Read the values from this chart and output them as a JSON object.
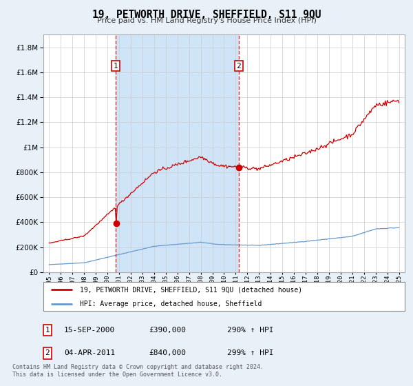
{
  "title": "19, PETWORTH DRIVE, SHEFFIELD, S11 9QU",
  "subtitle": "Price paid vs. HM Land Registry's House Price Index (HPI)",
  "legend_line1": "19, PETWORTH DRIVE, SHEFFIELD, S11 9QU (detached house)",
  "legend_line2": "HPI: Average price, detached house, Sheffield",
  "annotation1_date": "15-SEP-2000",
  "annotation1_price": "£390,000",
  "annotation1_hpi": "290% ↑ HPI",
  "annotation2_date": "04-APR-2011",
  "annotation2_price": "£840,000",
  "annotation2_hpi": "299% ↑ HPI",
  "sale1_year": 2000.71,
  "sale2_year": 2011.25,
  "sale1_price": 390000,
  "sale2_price": 840000,
  "footer": "Contains HM Land Registry data © Crown copyright and database right 2024.\nThis data is licensed under the Open Government Licence v3.0.",
  "bg_color": "#e8f0f8",
  "plot_bg_color": "#ffffff",
  "shade_color": "#d0e4f7",
  "red_color": "#cc0000",
  "blue_color": "#6699cc",
  "dashed_color": "#cc0000",
  "ylim_max": 1900000,
  "xlim_min": 1994.5,
  "xlim_max": 2025.5
}
